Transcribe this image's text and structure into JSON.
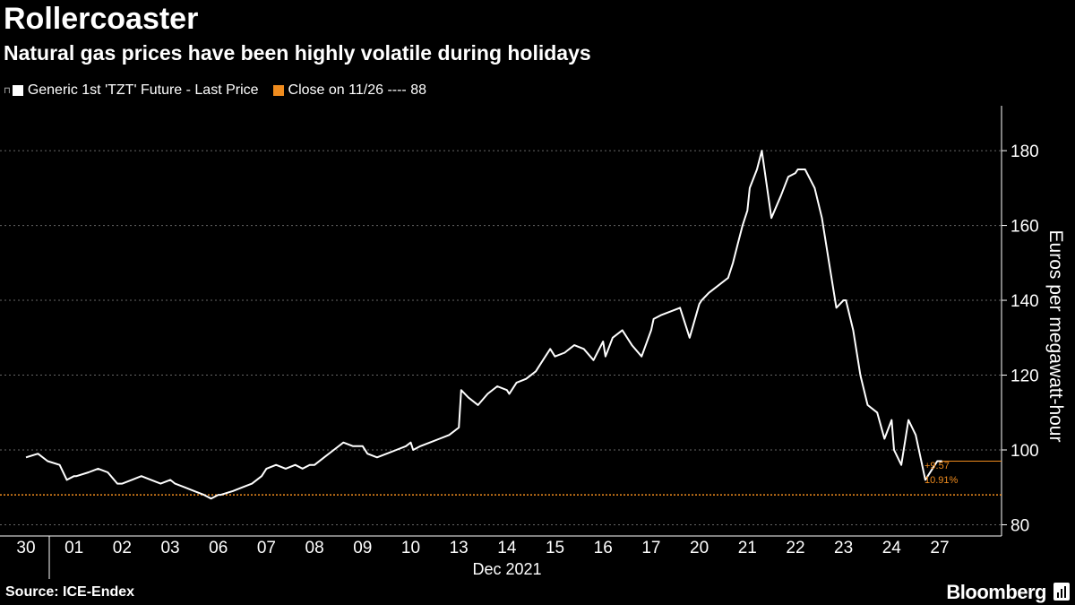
{
  "header": {
    "title": "Rollercoaster",
    "subtitle": "Natural gas prices have been highly volatile during holidays"
  },
  "legend": {
    "series_label": "Generic 1st 'TZT' Future - Last Price",
    "close_label": "Close on 11/26 ---- 88"
  },
  "footer": {
    "source": "Source: ICE-Endex",
    "brand": "Bloomberg"
  },
  "colors": {
    "background": "#000000",
    "line": "#ffffff",
    "reference": "#f08c1e",
    "grid": "#666666"
  },
  "chart_data": {
    "type": "line",
    "title": "Rollercoaster",
    "subtitle": "Natural gas prices have been highly volatile during holidays",
    "ylabel": "Euros per megawatt-hour",
    "xlabel": "Dec 2021",
    "ylim": [
      77,
      192
    ],
    "yticks": [
      80,
      100,
      120,
      140,
      160,
      180
    ],
    "categories": [
      "30",
      "01",
      "02",
      "03",
      "06",
      "07",
      "08",
      "09",
      "10",
      "13",
      "14",
      "15",
      "16",
      "17",
      "20",
      "21",
      "22",
      "23",
      "24",
      "27"
    ],
    "reference": {
      "label": "Close on 11/26",
      "value": 88
    },
    "annotation": {
      "change": "+9.57",
      "pct": "10.91%"
    },
    "series": [
      {
        "name": "Generic 1st 'TZT' Future - Last Price",
        "x": [
          0,
          0.25,
          0.45,
          0.7,
          0.85,
          1.0,
          1.05,
          1.3,
          1.5,
          1.7,
          1.9,
          2.0,
          2.2,
          2.4,
          2.6,
          2.8,
          3.0,
          3.1,
          3.3,
          3.5,
          3.7,
          3.85,
          4.0,
          4.05,
          4.3,
          4.5,
          4.7,
          4.9,
          5.0,
          5.2,
          5.4,
          5.6,
          5.75,
          5.9,
          6.0,
          6.2,
          6.4,
          6.6,
          6.8,
          7.0,
          7.1,
          7.3,
          7.5,
          7.7,
          7.9,
          8.0,
          8.05,
          8.2,
          8.4,
          8.6,
          8.8,
          9.0,
          9.05,
          9.2,
          9.4,
          9.6,
          9.8,
          10.0,
          10.05,
          10.2,
          10.4,
          10.6,
          10.75,
          10.9,
          11.0,
          11.2,
          11.4,
          11.6,
          11.8,
          12.0,
          12.05,
          12.2,
          12.4,
          12.6,
          12.8,
          13.0,
          13.05,
          13.2,
          13.4,
          13.6,
          13.8,
          14.0,
          14.05,
          14.2,
          14.4,
          14.6,
          14.7,
          14.8,
          14.9,
          15.0,
          15.05,
          15.2,
          15.3,
          15.5,
          15.7,
          15.85,
          16.0,
          16.05,
          16.2,
          16.4,
          16.55,
          16.7,
          16.85,
          17.0,
          17.05,
          17.2,
          17.35,
          17.5,
          17.7,
          17.85,
          18.0,
          18.05,
          18.2,
          18.35,
          18.5,
          18.7,
          18.85,
          18.95,
          19.0,
          19.05
        ],
        "values": [
          98,
          99,
          97,
          96,
          92,
          93,
          93,
          94,
          95,
          94,
          91,
          91,
          92,
          93,
          92,
          91,
          92,
          91,
          90,
          89,
          88,
          87,
          88,
          88,
          89,
          90,
          91,
          93,
          95,
          96,
          95,
          96,
          95,
          96,
          96,
          98,
          100,
          102,
          101,
          101,
          99,
          98,
          99,
          100,
          101,
          102,
          100,
          101,
          102,
          103,
          104,
          106,
          116,
          114,
          112,
          115,
          117,
          116,
          115,
          118,
          119,
          121,
          124,
          127,
          125,
          126,
          128,
          127,
          124,
          129,
          125,
          130,
          132,
          128,
          125,
          132,
          135,
          136,
          137,
          138,
          130,
          139,
          140,
          142,
          144,
          146,
          150,
          155,
          160,
          164,
          170,
          175,
          180,
          162,
          168,
          173,
          174,
          175,
          175,
          170,
          162,
          150,
          138,
          140,
          140,
          132,
          120,
          112,
          110,
          103,
          108,
          100,
          96,
          108,
          104,
          92,
          95,
          97,
          97,
          97
        ]
      }
    ]
  }
}
